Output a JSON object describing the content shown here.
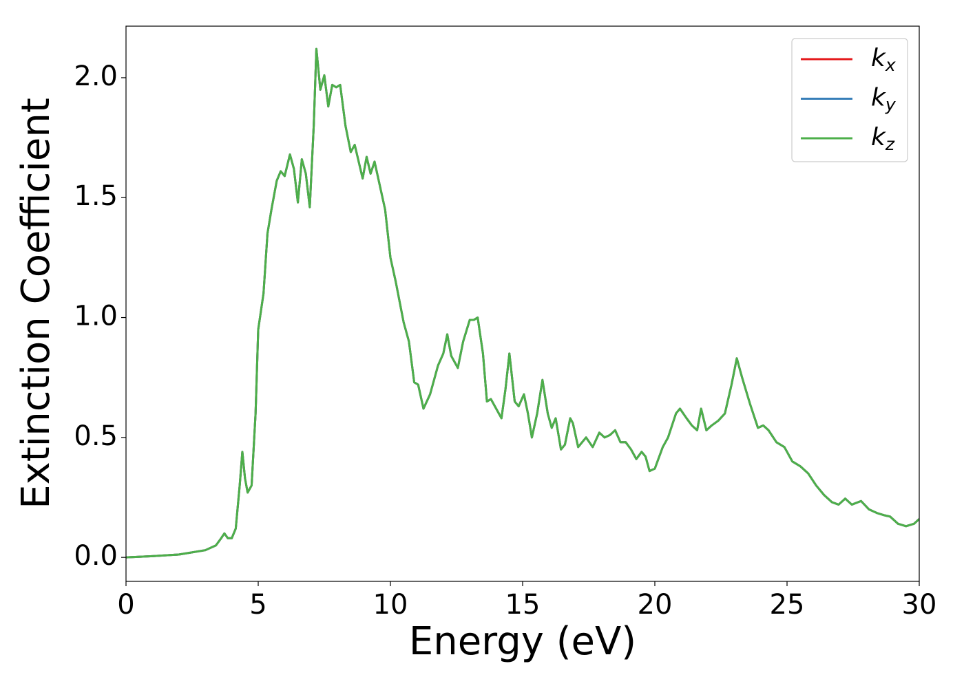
{
  "chart_data": {
    "type": "line",
    "xlabel": "Energy (eV)",
    "ylabel": "Extinction Coefficient",
    "x": [
      0,
      1,
      2,
      3,
      3.4,
      3.6,
      3.72,
      3.85,
      4.0,
      4.15,
      4.3,
      4.4,
      4.5,
      4.6,
      4.75,
      4.9,
      5.0,
      5.2,
      5.35,
      5.5,
      5.7,
      5.85,
      6.0,
      6.2,
      6.35,
      6.5,
      6.65,
      6.8,
      6.95,
      7.1,
      7.2,
      7.35,
      7.5,
      7.65,
      7.8,
      7.95,
      8.1,
      8.3,
      8.5,
      8.65,
      8.8,
      8.95,
      9.1,
      9.25,
      9.4,
      9.6,
      9.8,
      10.0,
      10.2,
      10.5,
      10.7,
      10.9,
      11.05,
      11.25,
      11.5,
      11.8,
      12.0,
      12.15,
      12.3,
      12.55,
      12.75,
      13.0,
      13.15,
      13.3,
      13.5,
      13.65,
      13.8,
      14.0,
      14.2,
      14.35,
      14.5,
      14.7,
      14.85,
      15.05,
      15.2,
      15.35,
      15.55,
      15.75,
      15.95,
      16.1,
      16.25,
      16.45,
      16.6,
      16.8,
      16.9,
      17.1,
      17.4,
      17.65,
      17.9,
      18.1,
      18.3,
      18.5,
      18.7,
      18.9,
      19.1,
      19.3,
      19.5,
      19.65,
      19.8,
      20.0,
      20.3,
      20.5,
      20.8,
      20.95,
      21.2,
      21.4,
      21.6,
      21.75,
      21.95,
      22.15,
      22.4,
      22.65,
      22.9,
      23.1,
      23.3,
      23.6,
      23.9,
      24.1,
      24.3,
      24.6,
      24.9,
      25.2,
      25.5,
      25.8,
      26.1,
      26.4,
      26.7,
      26.95,
      27.2,
      27.45,
      27.8,
      28.1,
      28.4,
      28.7,
      28.9,
      29.2,
      29.5,
      29.8,
      30
    ],
    "series": [
      {
        "name": "kx",
        "color": "#e41a1c",
        "values": [
          0,
          0.005,
          0.012,
          0.03,
          0.05,
          0.08,
          0.1,
          0.08,
          0.08,
          0.12,
          0.3,
          0.44,
          0.33,
          0.27,
          0.3,
          0.6,
          0.95,
          1.1,
          1.35,
          1.45,
          1.57,
          1.61,
          1.59,
          1.68,
          1.62,
          1.48,
          1.66,
          1.6,
          1.46,
          1.8,
          2.12,
          1.95,
          2.01,
          1.88,
          1.97,
          1.96,
          1.97,
          1.8,
          1.69,
          1.72,
          1.65,
          1.58,
          1.67,
          1.6,
          1.65,
          1.55,
          1.45,
          1.25,
          1.15,
          0.98,
          0.9,
          0.73,
          0.72,
          0.62,
          0.68,
          0.8,
          0.85,
          0.93,
          0.84,
          0.79,
          0.9,
          0.99,
          0.99,
          1.0,
          0.85,
          0.65,
          0.66,
          0.62,
          0.58,
          0.7,
          0.85,
          0.65,
          0.63,
          0.68,
          0.6,
          0.5,
          0.6,
          0.74,
          0.6,
          0.54,
          0.58,
          0.45,
          0.47,
          0.58,
          0.56,
          0.46,
          0.5,
          0.46,
          0.52,
          0.5,
          0.51,
          0.53,
          0.48,
          0.48,
          0.45,
          0.41,
          0.44,
          0.42,
          0.36,
          0.37,
          0.46,
          0.5,
          0.6,
          0.62,
          0.58,
          0.55,
          0.53,
          0.62,
          0.53,
          0.55,
          0.57,
          0.6,
          0.72,
          0.83,
          0.75,
          0.64,
          0.54,
          0.55,
          0.53,
          0.48,
          0.46,
          0.4,
          0.38,
          0.35,
          0.3,
          0.26,
          0.23,
          0.22,
          0.245,
          0.22,
          0.235,
          0.2,
          0.185,
          0.175,
          0.17,
          0.14,
          0.13,
          0.14,
          0.16
        ]
      },
      {
        "name": "ky",
        "color": "#377eb8",
        "values": [
          0,
          0.005,
          0.012,
          0.03,
          0.05,
          0.08,
          0.1,
          0.08,
          0.08,
          0.12,
          0.3,
          0.44,
          0.33,
          0.27,
          0.3,
          0.6,
          0.95,
          1.1,
          1.35,
          1.45,
          1.57,
          1.61,
          1.59,
          1.68,
          1.62,
          1.48,
          1.66,
          1.6,
          1.46,
          1.8,
          2.12,
          1.95,
          2.01,
          1.88,
          1.97,
          1.96,
          1.97,
          1.8,
          1.69,
          1.72,
          1.65,
          1.58,
          1.67,
          1.6,
          1.65,
          1.55,
          1.45,
          1.25,
          1.15,
          0.98,
          0.9,
          0.73,
          0.72,
          0.62,
          0.68,
          0.8,
          0.85,
          0.93,
          0.84,
          0.79,
          0.9,
          0.99,
          0.99,
          1.0,
          0.85,
          0.65,
          0.66,
          0.62,
          0.58,
          0.7,
          0.85,
          0.65,
          0.63,
          0.68,
          0.6,
          0.5,
          0.6,
          0.74,
          0.6,
          0.54,
          0.58,
          0.45,
          0.47,
          0.58,
          0.56,
          0.46,
          0.5,
          0.46,
          0.52,
          0.5,
          0.51,
          0.53,
          0.48,
          0.48,
          0.45,
          0.41,
          0.44,
          0.42,
          0.36,
          0.37,
          0.46,
          0.5,
          0.6,
          0.62,
          0.58,
          0.55,
          0.53,
          0.62,
          0.53,
          0.55,
          0.57,
          0.6,
          0.72,
          0.83,
          0.75,
          0.64,
          0.54,
          0.55,
          0.53,
          0.48,
          0.46,
          0.4,
          0.38,
          0.35,
          0.3,
          0.26,
          0.23,
          0.22,
          0.245,
          0.22,
          0.235,
          0.2,
          0.185,
          0.175,
          0.17,
          0.14,
          0.13,
          0.14,
          0.16
        ]
      },
      {
        "name": "kz",
        "color": "#4daf4a",
        "values": [
          0,
          0.005,
          0.012,
          0.03,
          0.05,
          0.08,
          0.1,
          0.08,
          0.08,
          0.12,
          0.3,
          0.44,
          0.33,
          0.27,
          0.3,
          0.6,
          0.95,
          1.1,
          1.35,
          1.45,
          1.57,
          1.61,
          1.59,
          1.68,
          1.62,
          1.48,
          1.66,
          1.6,
          1.46,
          1.8,
          2.12,
          1.95,
          2.01,
          1.88,
          1.97,
          1.96,
          1.97,
          1.8,
          1.69,
          1.72,
          1.65,
          1.58,
          1.67,
          1.6,
          1.65,
          1.55,
          1.45,
          1.25,
          1.15,
          0.98,
          0.9,
          0.73,
          0.72,
          0.62,
          0.68,
          0.8,
          0.85,
          0.93,
          0.84,
          0.79,
          0.9,
          0.99,
          0.99,
          1.0,
          0.85,
          0.65,
          0.66,
          0.62,
          0.58,
          0.7,
          0.85,
          0.65,
          0.63,
          0.68,
          0.6,
          0.5,
          0.6,
          0.74,
          0.6,
          0.54,
          0.58,
          0.45,
          0.47,
          0.58,
          0.56,
          0.46,
          0.5,
          0.46,
          0.52,
          0.5,
          0.51,
          0.53,
          0.48,
          0.48,
          0.45,
          0.41,
          0.44,
          0.42,
          0.36,
          0.37,
          0.46,
          0.5,
          0.6,
          0.62,
          0.58,
          0.55,
          0.53,
          0.62,
          0.53,
          0.55,
          0.57,
          0.6,
          0.72,
          0.83,
          0.75,
          0.64,
          0.54,
          0.55,
          0.53,
          0.48,
          0.46,
          0.4,
          0.38,
          0.35,
          0.3,
          0.26,
          0.23,
          0.22,
          0.245,
          0.22,
          0.235,
          0.2,
          0.185,
          0.175,
          0.17,
          0.14,
          0.13,
          0.14,
          0.16
        ]
      }
    ],
    "xlim": [
      0,
      30
    ],
    "xticks": [
      0,
      5,
      10,
      15,
      20,
      25,
      30
    ],
    "ylim": [
      -0.1,
      2.215
    ],
    "yticks": [
      {
        "value": 0,
        "label": "0.0"
      },
      {
        "value": 0.5,
        "label": "0.5"
      },
      {
        "value": 1,
        "label": "1.0"
      },
      {
        "value": 1.5,
        "label": "1.5"
      },
      {
        "value": 2,
        "label": "2.0"
      }
    ],
    "grid": false,
    "legend": "upper right"
  }
}
